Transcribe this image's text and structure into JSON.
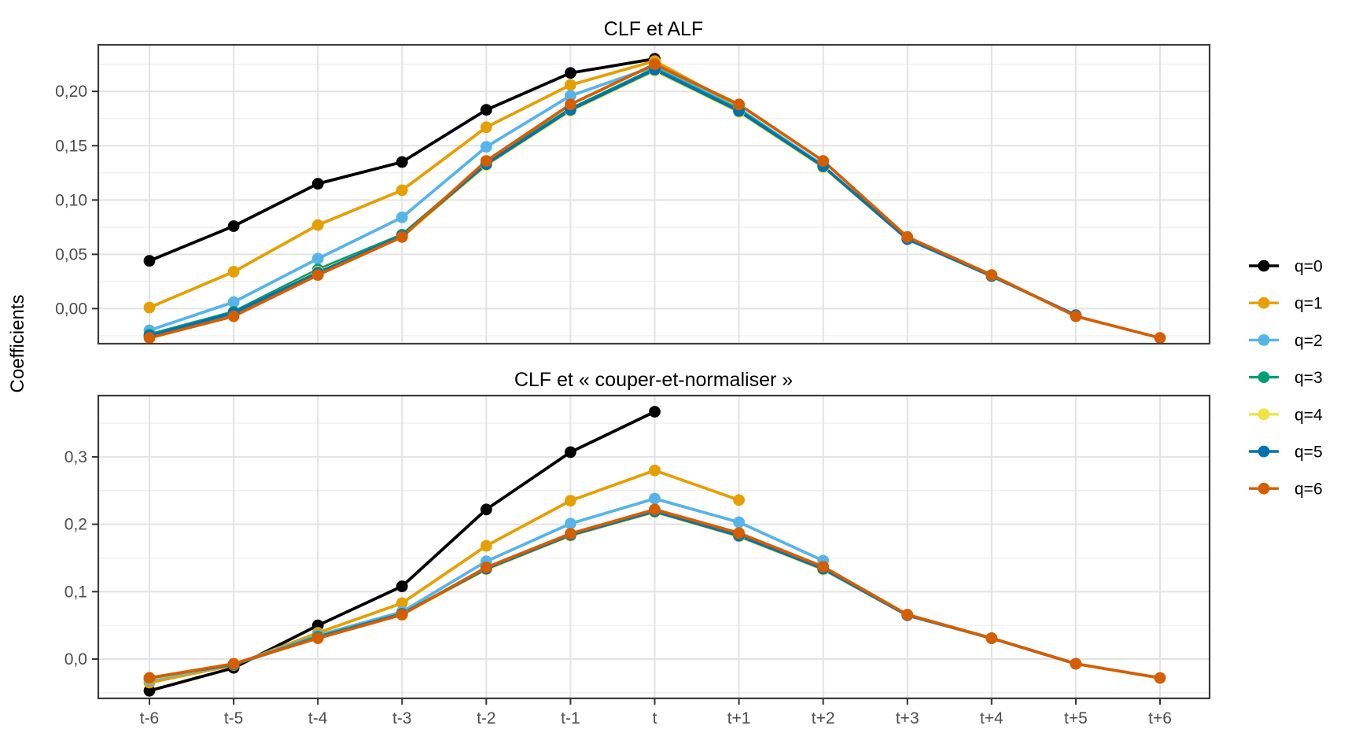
{
  "figure": {
    "ylabel": "Coefficients",
    "background_color": "#ffffff"
  },
  "legend": {
    "position": "right",
    "items": [
      {
        "label": "q=0",
        "color": "#000000"
      },
      {
        "label": "q=1",
        "color": "#E69F00"
      },
      {
        "label": "q=2",
        "color": "#56B4E9"
      },
      {
        "label": "q=3",
        "color": "#009E73"
      },
      {
        "label": "q=4",
        "color": "#F0E442"
      },
      {
        "label": "q=5",
        "color": "#0072B2"
      },
      {
        "label": "q=6",
        "color": "#D55E00"
      }
    ]
  },
  "chart_data": [
    {
      "type": "line",
      "title": "CLF et ALF",
      "xlabel": "",
      "ylabel": "Coefficients",
      "x_categories": [
        "t-6",
        "t-5",
        "t-4",
        "t-3",
        "t-2",
        "t-1",
        "t",
        "t+1",
        "t+2",
        "t+3",
        "t+4",
        "t+5",
        "t+6"
      ],
      "ylim": [
        -0.0323,
        0.2429
      ],
      "yticks": [
        {
          "value": 0.0,
          "label": "0,00"
        },
        {
          "value": 0.05,
          "label": "0,05"
        },
        {
          "value": 0.1,
          "label": "0,10"
        },
        {
          "value": 0.15,
          "label": "0,15"
        },
        {
          "value": 0.2,
          "label": "0,20"
        }
      ],
      "minor_grid_values": [
        -0.025,
        0.025,
        0.075,
        0.125,
        0.175,
        0.225
      ],
      "grid": true,
      "legend_position": "right",
      "series": [
        {
          "name": "q=0",
          "color": "#000000",
          "values": [
            0.044,
            0.076,
            0.115,
            0.135,
            0.183,
            0.217,
            0.23,
            null,
            null,
            null,
            null,
            null,
            null
          ]
        },
        {
          "name": "q=1",
          "color": "#E69F00",
          "values": [
            0.001,
            0.034,
            0.077,
            0.109,
            0.167,
            0.206,
            0.228,
            0.186,
            null,
            null,
            null,
            null,
            null
          ]
        },
        {
          "name": "q=2",
          "color": "#56B4E9",
          "values": [
            -0.02,
            0.006,
            0.046,
            0.084,
            0.149,
            0.196,
            0.223,
            0.184,
            0.132,
            null,
            null,
            null,
            null
          ]
        },
        {
          "name": "q=3",
          "color": "#009E73",
          "values": [
            -0.024,
            -0.003,
            0.036,
            0.068,
            0.134,
            0.184,
            0.221,
            0.183,
            0.131,
            0.064,
            null,
            null,
            null
          ]
        },
        {
          "name": "q=4",
          "color": "#F0E442",
          "values": [
            -0.026,
            -0.005,
            0.034,
            0.066,
            0.132,
            0.182,
            0.219,
            0.181,
            0.13,
            0.064,
            0.03,
            null,
            null
          ]
        },
        {
          "name": "q=5",
          "color": "#0072B2",
          "values": [
            -0.025,
            -0.004,
            0.033,
            0.067,
            0.133,
            0.183,
            0.22,
            0.182,
            0.131,
            0.064,
            0.03,
            -0.006,
            null
          ]
        },
        {
          "name": "q=6",
          "color": "#D55E00",
          "values": [
            -0.027,
            -0.007,
            0.031,
            0.066,
            0.136,
            0.188,
            0.225,
            0.188,
            0.136,
            0.066,
            0.031,
            -0.007,
            -0.027
          ]
        }
      ]
    },
    {
      "type": "line",
      "title": "CLF et « couper-et-normaliser »",
      "xlabel": "",
      "ylabel": "Coefficients",
      "x_categories": [
        "t-6",
        "t-5",
        "t-4",
        "t-3",
        "t-2",
        "t-1",
        "t",
        "t+1",
        "t+2",
        "t+3",
        "t+4",
        "t+5",
        "t+6"
      ],
      "ylim": [
        -0.0583,
        0.3909
      ],
      "yticks": [
        {
          "value": 0.0,
          "label": "0,0"
        },
        {
          "value": 0.1,
          "label": "0,1"
        },
        {
          "value": 0.2,
          "label": "0,2"
        },
        {
          "value": 0.3,
          "label": "0,3"
        }
      ],
      "minor_grid_values": [
        -0.05,
        0.05,
        0.15,
        0.25,
        0.35
      ],
      "grid": true,
      "legend_position": "right",
      "series": [
        {
          "name": "q=0",
          "color": "#000000",
          "values": [
            -0.047,
            -0.013,
            0.05,
            0.108,
            0.222,
            0.307,
            0.367,
            null,
            null,
            null,
            null,
            null,
            null
          ]
        },
        {
          "name": "q=1",
          "color": "#E69F00",
          "values": [
            -0.035,
            -0.009,
            0.039,
            0.083,
            0.168,
            0.235,
            0.28,
            0.236,
            null,
            null,
            null,
            null,
            null
          ]
        },
        {
          "name": "q=2",
          "color": "#56B4E9",
          "values": [
            -0.031,
            -0.008,
            0.035,
            0.07,
            0.145,
            0.201,
            0.238,
            0.203,
            0.146,
            null,
            null,
            null,
            null
          ]
        },
        {
          "name": "q=3",
          "color": "#009E73",
          "values": [
            -0.029,
            -0.008,
            0.033,
            0.067,
            0.134,
            0.184,
            0.219,
            0.182,
            0.133,
            0.065,
            null,
            null,
            null
          ]
        },
        {
          "name": "q=4",
          "color": "#F0E442",
          "values": [
            -0.029,
            -0.008,
            0.032,
            0.066,
            0.133,
            0.183,
            0.218,
            0.182,
            0.133,
            0.065,
            0.031,
            null,
            null
          ]
        },
        {
          "name": "q=5",
          "color": "#0072B2",
          "values": [
            -0.028,
            -0.008,
            0.032,
            0.067,
            0.134,
            0.184,
            0.219,
            0.183,
            0.134,
            0.065,
            0.031,
            -0.007,
            null
          ]
        },
        {
          "name": "q=6",
          "color": "#D55E00",
          "values": [
            -0.028,
            -0.007,
            0.031,
            0.066,
            0.136,
            0.186,
            0.222,
            0.187,
            0.137,
            0.066,
            0.031,
            -0.007,
            -0.028
          ]
        }
      ]
    }
  ]
}
